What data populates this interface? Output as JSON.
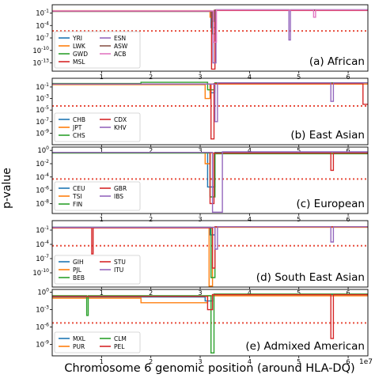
{
  "figure": {
    "xlabel": "Chromosome 6 genomic position (around HLA-DQ)",
    "ylabel": "p-value",
    "x_offset_label": "1e7"
  },
  "chart_data": [
    {
      "type": "line",
      "title": "(a) African",
      "xlim": [
        0,
        6.4
      ],
      "ylim_exp": [
        -15,
        1
      ],
      "log_y": true,
      "y_ticks": [
        {
          "exp": -1,
          "label": "10^-1"
        },
        {
          "exp": -4,
          "label": "10^-4"
        },
        {
          "exp": -7,
          "label": "10^-7"
        },
        {
          "exp": -10,
          "label": "10^-10"
        },
        {
          "exp": -13,
          "label": "10^-13"
        }
      ],
      "threshold_exp": -5.3,
      "legend": "lower-left",
      "series": [
        {
          "name": "YRI",
          "color": "#1f77b4",
          "points": [
            [
              0.0,
              -0.5
            ],
            [
              3.22,
              -0.5
            ],
            [
              3.22,
              -4.5
            ],
            [
              3.3,
              -4.5
            ],
            [
              3.3,
              -0.3
            ],
            [
              6.4,
              -0.3
            ]
          ]
        },
        {
          "name": "LWK",
          "color": "#ff7f0e",
          "points": [
            [
              0.0,
              -0.45
            ],
            [
              3.2,
              -0.45
            ],
            [
              3.2,
              -2.0
            ],
            [
              3.28,
              -2.0
            ],
            [
              3.28,
              -0.4
            ],
            [
              6.4,
              -0.4
            ]
          ]
        },
        {
          "name": "GWD",
          "color": "#2ca02c",
          "points": [
            [
              0.0,
              -0.6
            ],
            [
              3.25,
              -0.6
            ],
            [
              3.25,
              -6.0
            ],
            [
              3.31,
              -6.0
            ],
            [
              3.31,
              -0.3
            ],
            [
              6.4,
              -0.3
            ]
          ]
        },
        {
          "name": "MSL",
          "color": "#d62728",
          "points": [
            [
              0.0,
              -0.55
            ],
            [
              3.23,
              -0.55
            ],
            [
              3.23,
              -14.5
            ],
            [
              3.3,
              -14.5
            ],
            [
              3.3,
              -0.4
            ],
            [
              6.4,
              -0.4
            ]
          ]
        },
        {
          "name": "ESN",
          "color": "#9467bd",
          "points": [
            [
              0.0,
              -0.5
            ],
            [
              3.26,
              -0.5
            ],
            [
              3.26,
              -13.0
            ],
            [
              3.32,
              -13.0
            ],
            [
              3.32,
              -0.2
            ],
            [
              4.8,
              -0.2
            ],
            [
              4.8,
              -7.5
            ],
            [
              4.83,
              -7.5
            ],
            [
              4.83,
              -0.2
            ],
            [
              6.4,
              -0.2
            ]
          ]
        },
        {
          "name": "ASW",
          "color": "#8c564b",
          "points": [
            [
              0.0,
              -0.6
            ],
            [
              3.24,
              -0.6
            ],
            [
              3.24,
              -3.0
            ],
            [
              3.29,
              -3.0
            ],
            [
              3.29,
              -0.3
            ],
            [
              6.4,
              -0.3
            ]
          ]
        },
        {
          "name": "ACB",
          "color": "#e377c2",
          "points": [
            [
              0.0,
              -0.5
            ],
            [
              3.27,
              -0.5
            ],
            [
              3.27,
              -8.0
            ],
            [
              3.33,
              -8.0
            ],
            [
              3.33,
              -0.3
            ],
            [
              5.3,
              -0.3
            ],
            [
              5.3,
              -2.0
            ],
            [
              5.34,
              -2.0
            ],
            [
              5.34,
              -0.3
            ],
            [
              6.4,
              -0.3
            ]
          ]
        }
      ]
    },
    {
      "type": "line",
      "title": "(b) East Asian",
      "xlim": [
        0,
        6.4
      ],
      "ylim_exp": [
        -11,
        0.5
      ],
      "log_y": true,
      "y_ticks": [
        {
          "exp": -1,
          "label": "10^-1"
        },
        {
          "exp": -3,
          "label": "10^-3"
        },
        {
          "exp": -5,
          "label": "10^-5"
        },
        {
          "exp": -7,
          "label": "10^-7"
        },
        {
          "exp": -9,
          "label": "10^-9"
        }
      ],
      "threshold_exp": -4.3,
      "legend": "lower-left",
      "series": [
        {
          "name": "CHB",
          "color": "#1f77b4",
          "points": [
            [
              0.0,
              -0.5
            ],
            [
              3.2,
              -0.5
            ],
            [
              3.2,
              -2.0
            ],
            [
              3.3,
              -2.0
            ],
            [
              3.3,
              -0.3
            ],
            [
              6.4,
              -0.3
            ]
          ]
        },
        {
          "name": "JPT",
          "color": "#ff7f0e",
          "points": [
            [
              0.0,
              -0.6
            ],
            [
              3.1,
              -0.6
            ],
            [
              3.1,
              -3.0
            ],
            [
              3.2,
              -3.0
            ],
            [
              3.2,
              -0.5
            ],
            [
              6.4,
              -0.5
            ]
          ]
        },
        {
          "name": "CHS",
          "color": "#2ca02c",
          "points": [
            [
              0.0,
              -0.4
            ],
            [
              1.8,
              -0.4
            ],
            [
              1.8,
              -0.2
            ],
            [
              3.15,
              -0.2
            ],
            [
              3.15,
              -1.5
            ],
            [
              3.3,
              -1.5
            ],
            [
              3.3,
              -0.3
            ],
            [
              6.4,
              -0.3
            ]
          ]
        },
        {
          "name": "CDX",
          "color": "#d62728",
          "points": [
            [
              0.0,
              -0.5
            ],
            [
              3.22,
              -0.5
            ],
            [
              3.22,
              -10.0
            ],
            [
              3.28,
              -10.0
            ],
            [
              3.28,
              -0.4
            ],
            [
              6.3,
              -0.4
            ],
            [
              6.3,
              -4.0
            ],
            [
              6.4,
              -4.0
            ]
          ]
        },
        {
          "name": "KHV",
          "color": "#9467bd",
          "points": [
            [
              0.0,
              -0.5
            ],
            [
              3.3,
              -0.5
            ],
            [
              3.3,
              -7.0
            ],
            [
              3.35,
              -7.0
            ],
            [
              3.35,
              -0.3
            ],
            [
              5.65,
              -0.3
            ],
            [
              5.65,
              -3.5
            ],
            [
              5.7,
              -3.5
            ],
            [
              5.7,
              -0.3
            ],
            [
              6.4,
              -0.3
            ]
          ]
        }
      ]
    },
    {
      "type": "line",
      "title": "(c) European",
      "xlim": [
        0,
        6.4
      ],
      "ylim_exp": [
        -9.5,
        0.5
      ],
      "log_y": true,
      "y_ticks": [
        {
          "exp": 0,
          "label": "10^0"
        },
        {
          "exp": -2,
          "label": "10^-2"
        },
        {
          "exp": -4,
          "label": "10^-4"
        },
        {
          "exp": -6,
          "label": "10^-6"
        },
        {
          "exp": -8,
          "label": "10^-8"
        }
      ],
      "threshold_exp": -4.3,
      "legend": "lower-left",
      "series": [
        {
          "name": "CEU",
          "color": "#1f77b4",
          "points": [
            [
              0.0,
              -0.3
            ],
            [
              3.15,
              -0.3
            ],
            [
              3.15,
              -5.5
            ],
            [
              3.3,
              -5.5
            ],
            [
              3.3,
              -0.3
            ],
            [
              6.4,
              -0.3
            ]
          ]
        },
        {
          "name": "TSI",
          "color": "#ff7f0e",
          "points": [
            [
              0.0,
              -0.3
            ],
            [
              3.1,
              -0.3
            ],
            [
              3.1,
              -2.0
            ],
            [
              3.2,
              -2.0
            ],
            [
              3.2,
              -0.4
            ],
            [
              6.4,
              -0.4
            ]
          ]
        },
        {
          "name": "FIN",
          "color": "#2ca02c",
          "points": [
            [
              0.0,
              -0.4
            ],
            [
              3.2,
              -0.4
            ],
            [
              3.2,
              -7.0
            ],
            [
              3.3,
              -7.0
            ],
            [
              3.3,
              -0.5
            ],
            [
              6.4,
              -0.5
            ]
          ]
        },
        {
          "name": "GBR",
          "color": "#d62728",
          "points": [
            [
              0.0,
              -0.3
            ],
            [
              3.2,
              -0.3
            ],
            [
              3.2,
              -8.0
            ],
            [
              3.28,
              -8.0
            ],
            [
              3.28,
              -0.4
            ],
            [
              5.65,
              -0.4
            ],
            [
              5.65,
              -3.0
            ],
            [
              5.7,
              -3.0
            ],
            [
              5.7,
              -0.4
            ],
            [
              6.4,
              -0.4
            ]
          ]
        },
        {
          "name": "IBS",
          "color": "#9467bd",
          "points": [
            [
              0.0,
              -0.3
            ],
            [
              3.25,
              -0.3
            ],
            [
              3.25,
              -9.3
            ],
            [
              3.45,
              -9.3
            ],
            [
              3.45,
              -0.2
            ],
            [
              6.4,
              -0.2
            ]
          ]
        }
      ]
    },
    {
      "type": "line",
      "title": "(d) South East Asian",
      "xlim": [
        0,
        6.4
      ],
      "ylim_exp": [
        -13,
        1
      ],
      "log_y": true,
      "y_ticks": [
        {
          "exp": -1,
          "label": "10^-1"
        },
        {
          "exp": -4,
          "label": "10^-4"
        },
        {
          "exp": -7,
          "label": "10^-7"
        },
        {
          "exp": -10,
          "label": "10^-10"
        }
      ],
      "threshold_exp": -4.3,
      "legend": "lower-left",
      "series": [
        {
          "name": "GIH",
          "color": "#1f77b4",
          "points": [
            [
              0.0,
              -0.4
            ],
            [
              3.2,
              -0.4
            ],
            [
              3.2,
              -2.0
            ],
            [
              3.3,
              -2.0
            ],
            [
              3.3,
              -0.3
            ],
            [
              6.4,
              -0.3
            ]
          ]
        },
        {
          "name": "PJL",
          "color": "#ff7f0e",
          "points": [
            [
              0.0,
              -0.5
            ],
            [
              3.18,
              -0.5
            ],
            [
              3.18,
              -12.8
            ],
            [
              3.25,
              -12.8
            ],
            [
              3.25,
              -0.4
            ],
            [
              6.4,
              -0.4
            ]
          ]
        },
        {
          "name": "BEB",
          "color": "#2ca02c",
          "points": [
            [
              0.0,
              -0.4
            ],
            [
              3.22,
              -0.4
            ],
            [
              3.22,
              -11.0
            ],
            [
              3.3,
              -11.0
            ],
            [
              3.3,
              -0.3
            ],
            [
              6.4,
              -0.3
            ]
          ]
        },
        {
          "name": "STU",
          "color": "#d62728",
          "points": [
            [
              0.0,
              -0.5
            ],
            [
              0.8,
              -0.5
            ],
            [
              0.8,
              -6.0
            ],
            [
              0.83,
              -6.0
            ],
            [
              0.83,
              -0.5
            ],
            [
              3.25,
              -0.5
            ],
            [
              3.25,
              -9.0
            ],
            [
              3.3,
              -9.0
            ],
            [
              3.3,
              -0.3
            ],
            [
              6.4,
              -0.3
            ]
          ]
        },
        {
          "name": "ITU",
          "color": "#9467bd",
          "points": [
            [
              0.0,
              -0.4
            ],
            [
              3.3,
              -0.4
            ],
            [
              3.3,
              -5.0
            ],
            [
              3.35,
              -5.0
            ],
            [
              3.35,
              -0.3
            ],
            [
              5.65,
              -0.3
            ],
            [
              5.65,
              -3.5
            ],
            [
              5.7,
              -3.5
            ],
            [
              5.7,
              -0.3
            ],
            [
              6.4,
              -0.3
            ]
          ]
        }
      ]
    },
    {
      "type": "line",
      "title": "(e) Admixed American",
      "xlim": [
        0,
        6.4
      ],
      "ylim_exp": [
        -11,
        0.5
      ],
      "log_y": true,
      "y_ticks": [
        {
          "exp": 0,
          "label": "10^0"
        },
        {
          "exp": -3,
          "label": "10^-3"
        },
        {
          "exp": -6,
          "label": "10^-6"
        },
        {
          "exp": -9,
          "label": "10^-9"
        }
      ],
      "threshold_exp": -5.3,
      "legend": "lower-left",
      "series": [
        {
          "name": "MXL",
          "color": "#1f77b4",
          "points": [
            [
              0.0,
              -0.8
            ],
            [
              3.1,
              -0.8
            ],
            [
              3.1,
              -1.5
            ],
            [
              3.25,
              -1.5
            ],
            [
              3.25,
              -0.4
            ],
            [
              6.4,
              -0.4
            ]
          ]
        },
        {
          "name": "PUR",
          "color": "#ff7f0e",
          "points": [
            [
              0.0,
              -1.0
            ],
            [
              1.8,
              -1.0
            ],
            [
              1.8,
              -1.8
            ],
            [
              3.15,
              -1.8
            ],
            [
              3.15,
              -0.6
            ],
            [
              6.4,
              -0.6
            ]
          ]
        },
        {
          "name": "CLM",
          "color": "#2ca02c",
          "points": [
            [
              0.0,
              -0.6
            ],
            [
              0.7,
              -0.6
            ],
            [
              0.7,
              -4.0
            ],
            [
              0.73,
              -4.0
            ],
            [
              0.73,
              -0.6
            ],
            [
              3.22,
              -0.6
            ],
            [
              3.22,
              -10.5
            ],
            [
              3.28,
              -10.5
            ],
            [
              3.28,
              -0.3
            ],
            [
              6.4,
              -0.3
            ]
          ]
        },
        {
          "name": "PEL",
          "color": "#d62728",
          "points": [
            [
              0.0,
              -0.7
            ],
            [
              3.15,
              -0.7
            ],
            [
              3.15,
              -3.0
            ],
            [
              3.25,
              -3.0
            ],
            [
              3.25,
              -0.4
            ],
            [
              5.65,
              -0.4
            ],
            [
              5.65,
              -8.0
            ],
            [
              5.7,
              -8.0
            ],
            [
              5.7,
              -0.4
            ],
            [
              6.4,
              -0.4
            ]
          ]
        }
      ]
    }
  ],
  "x_ticks": [
    {
      "value": 1,
      "label": "1"
    },
    {
      "value": 2,
      "label": "2"
    },
    {
      "value": 3,
      "label": "3"
    },
    {
      "value": 4,
      "label": "4"
    },
    {
      "value": 5,
      "label": "5"
    },
    {
      "value": 6,
      "label": "6"
    }
  ]
}
